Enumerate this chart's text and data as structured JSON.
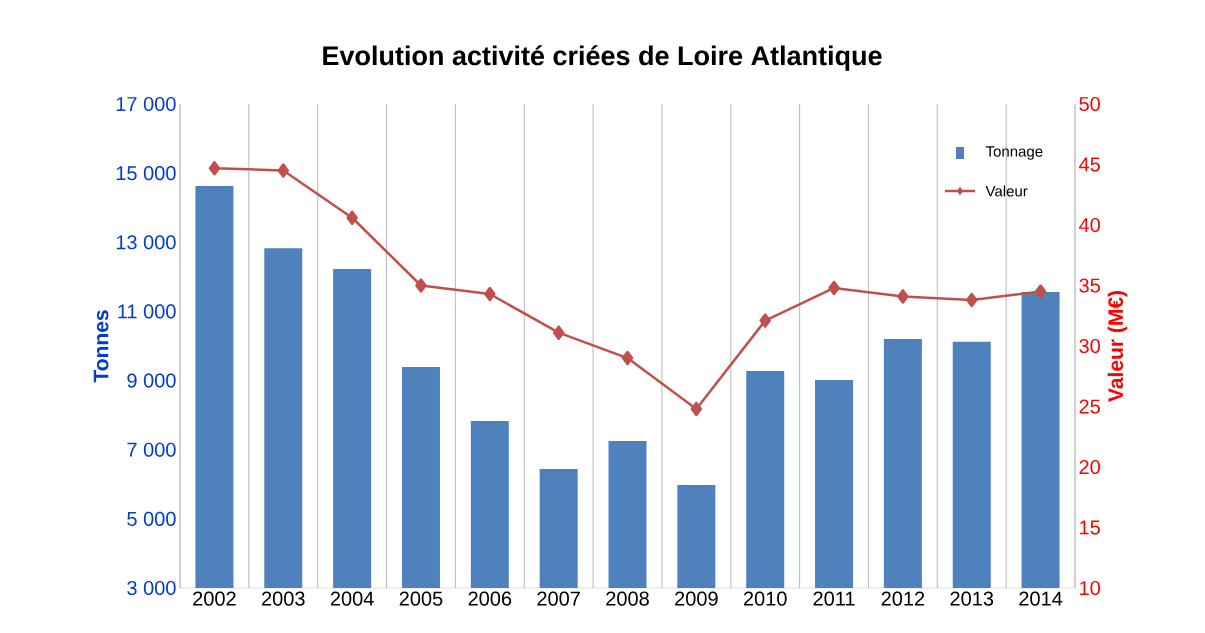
{
  "chart_data": {
    "type": "bar",
    "title": "Evolution activité criées de Loire Atlantique",
    "ylabel": "Tonnes",
    "y2label": "Valeur (M€)",
    "categories": [
      "2002",
      "2003",
      "2004",
      "2005",
      "2006",
      "2007",
      "2008",
      "2009",
      "2010",
      "2011",
      "2012",
      "2013",
      "2014"
    ],
    "series": [
      {
        "name": "Tonnage",
        "color": "#4f81bd",
        "values": [
          14630,
          12830,
          12230,
          9390,
          7830,
          6440,
          7250,
          5980,
          9280,
          9020,
          10200,
          10120,
          11560
        ]
      },
      {
        "name": "Valeur",
        "type": "line",
        "axis": "y2",
        "color": "#c0504d",
        "values": [
          44.7,
          44.5,
          40.6,
          35.0,
          34.3,
          31.1,
          29.0,
          24.8,
          32.1,
          34.8,
          34.1,
          33.8,
          34.5
        ]
      }
    ],
    "ylim": [
      3000,
      17000
    ],
    "yticks": [
      {
        "value": 3000,
        "label": "3 000"
      },
      {
        "value": 5000,
        "label": "5 000"
      },
      {
        "value": 7000,
        "label": "7 000"
      },
      {
        "value": 9000,
        "label": "9 000"
      },
      {
        "value": 11000,
        "label": "11 000"
      },
      {
        "value": 13000,
        "label": "13 000"
      },
      {
        "value": 15000,
        "label": "15 000"
      },
      {
        "value": 17000,
        "label": "17 000"
      }
    ],
    "y2lim": [
      10,
      50
    ],
    "y2ticks": [
      10,
      15,
      20,
      25,
      30,
      35,
      40,
      45,
      50
    ],
    "grid": "x",
    "legend": "top right",
    "marker": "diamond"
  }
}
